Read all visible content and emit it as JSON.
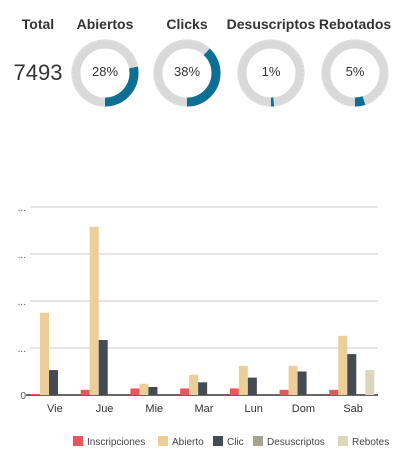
{
  "summary": {
    "total_label": "Total",
    "total_value": "7493",
    "metrics": [
      {
        "label": "Abiertos",
        "percent_text": "28%",
        "fraction": 0.28
      },
      {
        "label": "Clicks",
        "percent_text": "38%",
        "fraction": 0.38
      },
      {
        "label": "Desuscriptos",
        "percent_text": "1%",
        "fraction": 0.01
      },
      {
        "label": "Rebotados",
        "percent_text": "5%",
        "fraction": 0.05
      }
    ]
  },
  "colors": {
    "donut_fill": "#0e6f95",
    "donut_track": "#d9d9d9",
    "inscripciones": "#e8555a",
    "abierto": "#eccf98",
    "clic": "#444b52",
    "desuscriptos": "#a5a48c",
    "rebotes": "#dcd6bd",
    "grid": "#cccccc",
    "axis": "#333333"
  },
  "chart_data": {
    "type": "bar",
    "categories": [
      "Vie",
      "Jue",
      "Mie",
      "Mar",
      "Lun",
      "Dom",
      "Sab"
    ],
    "y_tick_labels": [
      "0",
      "...",
      "...",
      "...",
      "..."
    ],
    "ylim": [
      0,
      4
    ],
    "series": [
      {
        "name": "Inscripciones",
        "values": [
          0.02,
          0.11,
          0.14,
          0.14,
          0.14,
          0.11,
          0.11
        ]
      },
      {
        "name": "Abierto",
        "values": [
          1.75,
          3.58,
          0.24,
          0.43,
          0.62,
          0.62,
          1.26
        ]
      },
      {
        "name": "Clic",
        "values": [
          0.53,
          1.17,
          0.17,
          0.27,
          0.37,
          0.5,
          0.87
        ]
      },
      {
        "name": "Desuscriptos",
        "values": [
          0,
          0,
          0,
          0,
          0,
          0,
          0
        ]
      },
      {
        "name": "Rebotes",
        "values": [
          0,
          0,
          0,
          0,
          0,
          0,
          0.53
        ]
      }
    ],
    "legend_position": "bottom",
    "grid": true
  }
}
